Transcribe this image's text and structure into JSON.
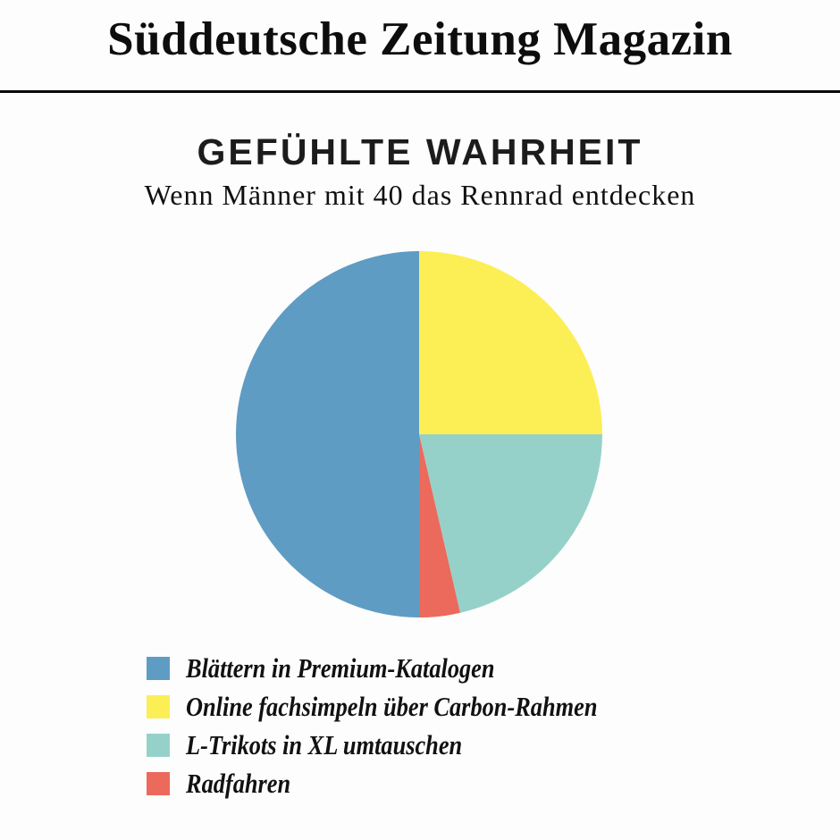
{
  "masthead": {
    "title": "Süddeutsche Zeitung Magazin"
  },
  "colors": {
    "background": "#fdfdfd",
    "rule": "#0a0a0a",
    "text": "#131313"
  },
  "chart_data": {
    "type": "pie",
    "title": "GEFÜHLTE WAHRHEIT",
    "subtitle": "Wenn Männer mit 40 das Rennrad entdecken",
    "legend_position": "bottom-left",
    "start_angle_deg": 180,
    "clockwise": true,
    "values_unit": "percent",
    "slices": [
      {
        "label": "Blättern in Premium-Katalogen",
        "value": 50,
        "color": "#5f9cc4"
      },
      {
        "label": "Online fachsimpeln über Carbon-Rahmen",
        "value": 25,
        "color": "#fcee55"
      },
      {
        "label": "L-Trikots in XL umtauschen",
        "value": 21.4,
        "color": "#96d1c9"
      },
      {
        "label": "Radfahren",
        "value": 3.6,
        "color": "#eb6a5b"
      }
    ]
  }
}
